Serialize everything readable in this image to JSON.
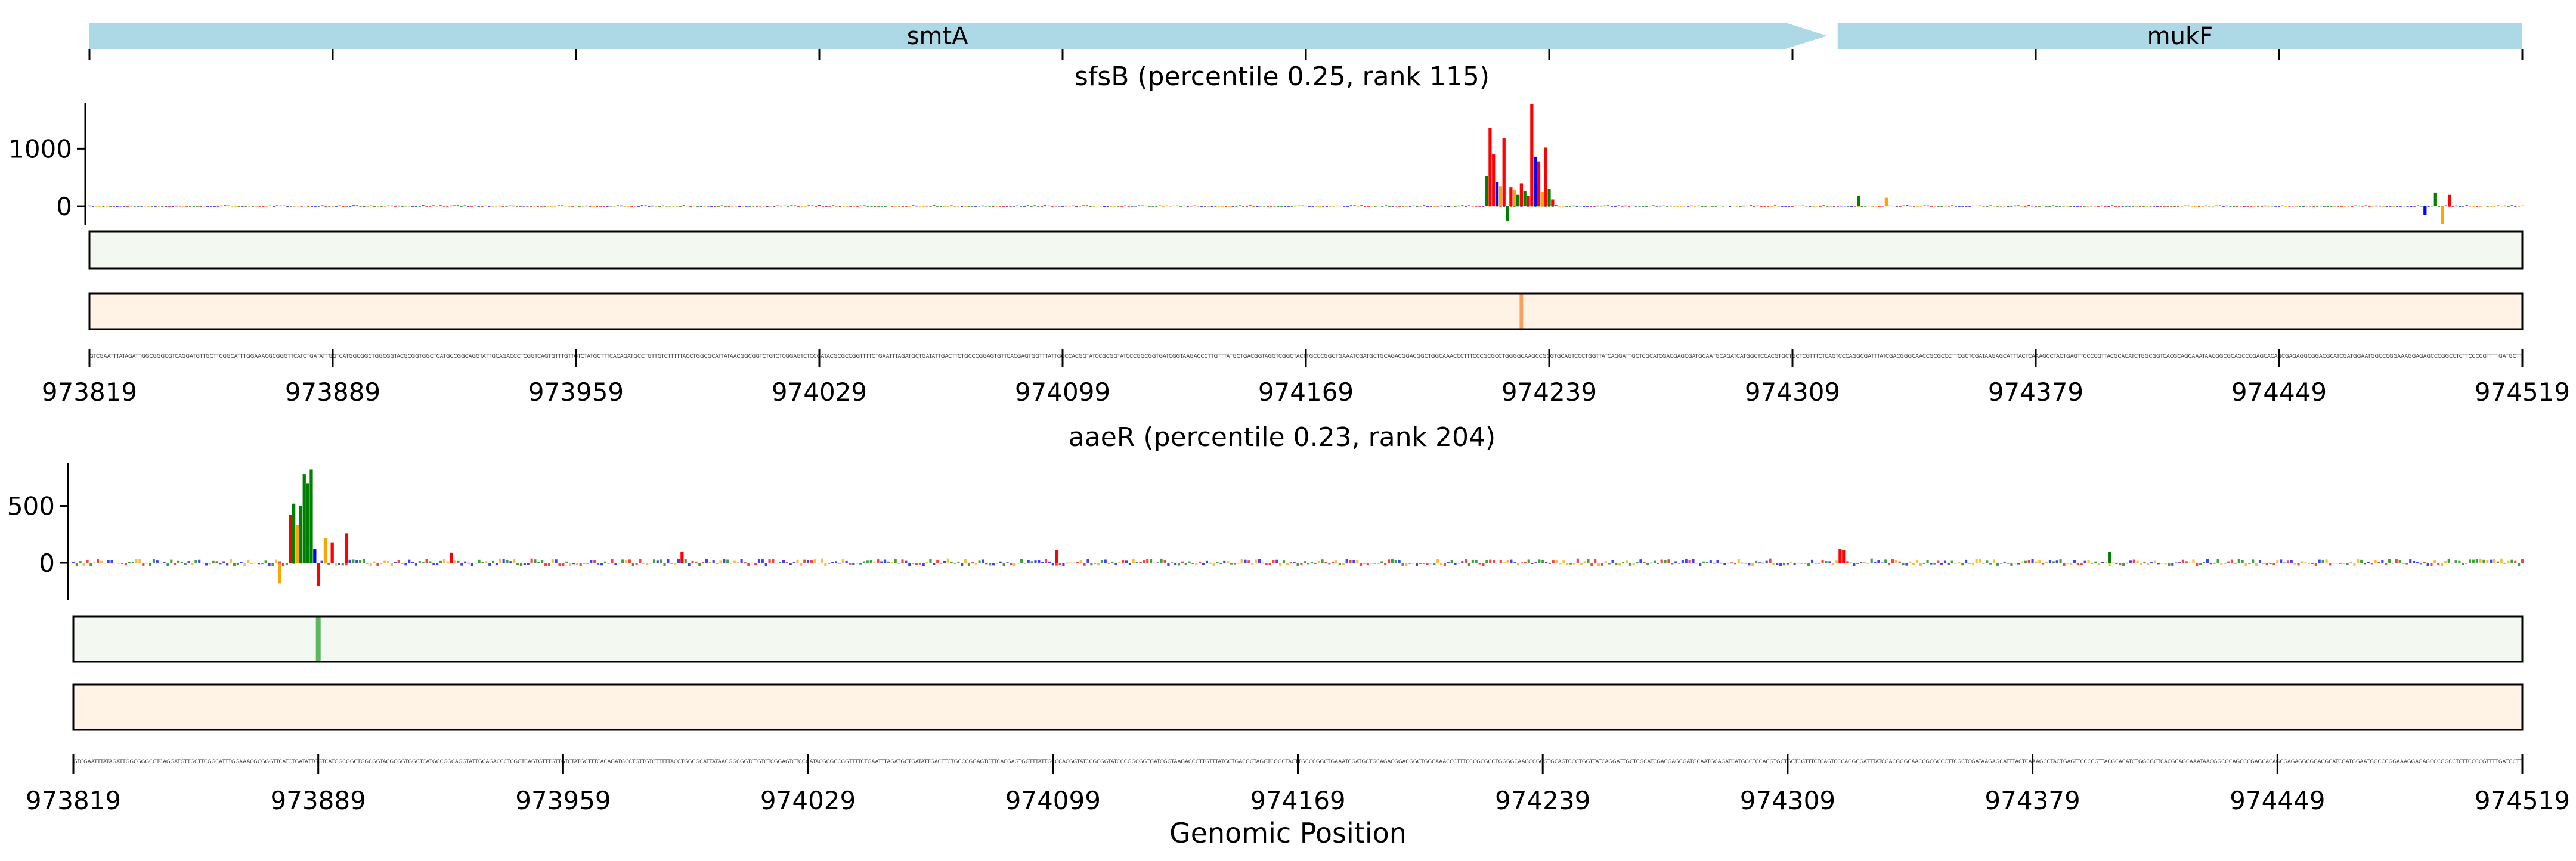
{
  "colors": {
    "gene_arrow": "#add8e6",
    "base_A": "#008000",
    "base_C": "#0000ff",
    "base_G": "#ffa500",
    "base_T": "#ff0000",
    "heat_green_bg": "#f3f9f1",
    "heat_green_peak": "#5cb85c",
    "heat_orange_bg": "#fff3e6",
    "heat_orange_peak": "#f4a460"
  },
  "genes": [
    {
      "name": "smtA",
      "start": 973819,
      "end": 974319,
      "strand": "+"
    },
    {
      "name": "mukF",
      "start": 974322,
      "end": 974519,
      "strand": "+"
    }
  ],
  "xlabel": "Genomic Position",
  "sequence": "GTCGAATTTATAGATTGGCGGGCGTCAGGATGTTGCTTCGGCATTTGGAAACGCGGGTTCATCTGATATTGGTCATGGCGGCTGGCGGTACGCGGTGGCTCATGCCGGCAGGTATTGCAGACCCTCGGTCAGTGTTTGTTGTCTATGCTTTCACAGATGCCTGTTGTCTTTTTACCTGGCGCATTATAACGGCGGTCTGTCTCGGAGTCTCCGATACGCGCCGGTTTTCTGAATTTAGATGCTGATATTGACTTCTGCCCGGAGTGTTCACGAGTGGTTTATTGCCCACGGTATCCGCGGTATCCCGGCGGTGATCGGTAAGACCCTTGTTTATGCTGACGGTAGGTCGGCTACTTGCCCGGCTGAAATCGATGCTGCAGACGGACGGCTGGCAAACCCTTTCCCGCGCCTGGGGCAAGCCGCGTGCAGTCCCTGGTTATCAGGATTGCTCGCATCGACGAGCGATGCAATGCAGATCATGGCTCCACGTGCTGCTCGTTTCTCAGTCCCAGGCGATTTATCGACGGGCAACCGCGCCCTTCGCTCGATAAGAGCATTTACTCAAAGCCTACTGAGTTCCCCGTTACGCACATCTGGCGGTCACGCAGCAAATAACGGCGCAGCCCGAGCACAGCGAGAGGCGGACGCATCGATGGAATGGCCCGGAAAGGAGAGCCCGGCCTCTTCCCCGTTTTGATGCTT",
  "tracks": [
    {
      "title": "sfsB (percentile 0.25, rank 115)",
      "ylim": [
        -330,
        1800
      ],
      "yticks": [
        0,
        1000
      ],
      "green_heat_peak": null,
      "orange_heat_peak": 974231,
      "spikes": [
        {
          "pos": 974222,
          "base": "T",
          "value": 1360
        },
        {
          "pos": 974223,
          "base": "T",
          "value": 900
        },
        {
          "pos": 974221,
          "base": "A",
          "value": 520
        },
        {
          "pos": 974224,
          "base": "C",
          "value": 420
        },
        {
          "pos": 974225,
          "base": "G",
          "value": 350
        },
        {
          "pos": 974226,
          "base": "T",
          "value": 1180
        },
        {
          "pos": 974227,
          "base": "A",
          "value": -250
        },
        {
          "pos": 974228,
          "base": "T",
          "value": 330
        },
        {
          "pos": 974229,
          "base": "G",
          "value": 280
        },
        {
          "pos": 974230,
          "base": "A",
          "value": 200
        },
        {
          "pos": 974231,
          "base": "T",
          "value": 400
        },
        {
          "pos": 974232,
          "base": "A",
          "value": 260
        },
        {
          "pos": 974233,
          "base": "T",
          "value": 180
        },
        {
          "pos": 974234,
          "base": "T",
          "value": 1780
        },
        {
          "pos": 974235,
          "base": "C",
          "value": 860
        },
        {
          "pos": 974236,
          "base": "T",
          "value": 780
        },
        {
          "pos": 974237,
          "base": "G",
          "value": 250
        },
        {
          "pos": 974238,
          "base": "T",
          "value": 1020
        },
        {
          "pos": 974239,
          "base": "A",
          "value": 300
        },
        {
          "pos": 974240,
          "base": "T",
          "value": 120
        },
        {
          "pos": 974328,
          "base": "A",
          "value": 180
        },
        {
          "pos": 974336,
          "base": "G",
          "value": 150
        },
        {
          "pos": 974494,
          "base": "A",
          "value": 240
        },
        {
          "pos": 974496,
          "base": "G",
          "value": -300
        },
        {
          "pos": 974498,
          "base": "T",
          "value": 200
        },
        {
          "pos": 974491,
          "base": "C",
          "value": -150
        }
      ]
    },
    {
      "title": "aaeR (percentile 0.23, rank 204)",
      "ylim": [
        -330,
        880
      ],
      "yticks": [
        0,
        500
      ],
      "green_heat_peak": 973889,
      "orange_heat_peak": null,
      "spikes": [
        {
          "pos": 973878,
          "base": "G",
          "value": -180
        },
        {
          "pos": 973881,
          "base": "T",
          "value": 420
        },
        {
          "pos": 973882,
          "base": "A",
          "value": 520
        },
        {
          "pos": 973883,
          "base": "G",
          "value": 330
        },
        {
          "pos": 973884,
          "base": "A",
          "value": 500
        },
        {
          "pos": 973885,
          "base": "A",
          "value": 780
        },
        {
          "pos": 973886,
          "base": "A",
          "value": 700
        },
        {
          "pos": 973887,
          "base": "A",
          "value": 820
        },
        {
          "pos": 973888,
          "base": "C",
          "value": 120
        },
        {
          "pos": 973889,
          "base": "T",
          "value": -200
        },
        {
          "pos": 973891,
          "base": "G",
          "value": 220
        },
        {
          "pos": 973893,
          "base": "T",
          "value": 180
        },
        {
          "pos": 973897,
          "base": "T",
          "value": 260
        },
        {
          "pos": 973927,
          "base": "T",
          "value": 90
        },
        {
          "pos": 973993,
          "base": "T",
          "value": 100
        },
        {
          "pos": 974100,
          "base": "T",
          "value": 110
        },
        {
          "pos": 974324,
          "base": "T",
          "value": 120
        },
        {
          "pos": 974325,
          "base": "T",
          "value": 110
        },
        {
          "pos": 974401,
          "base": "A",
          "value": 95
        }
      ]
    }
  ]
}
